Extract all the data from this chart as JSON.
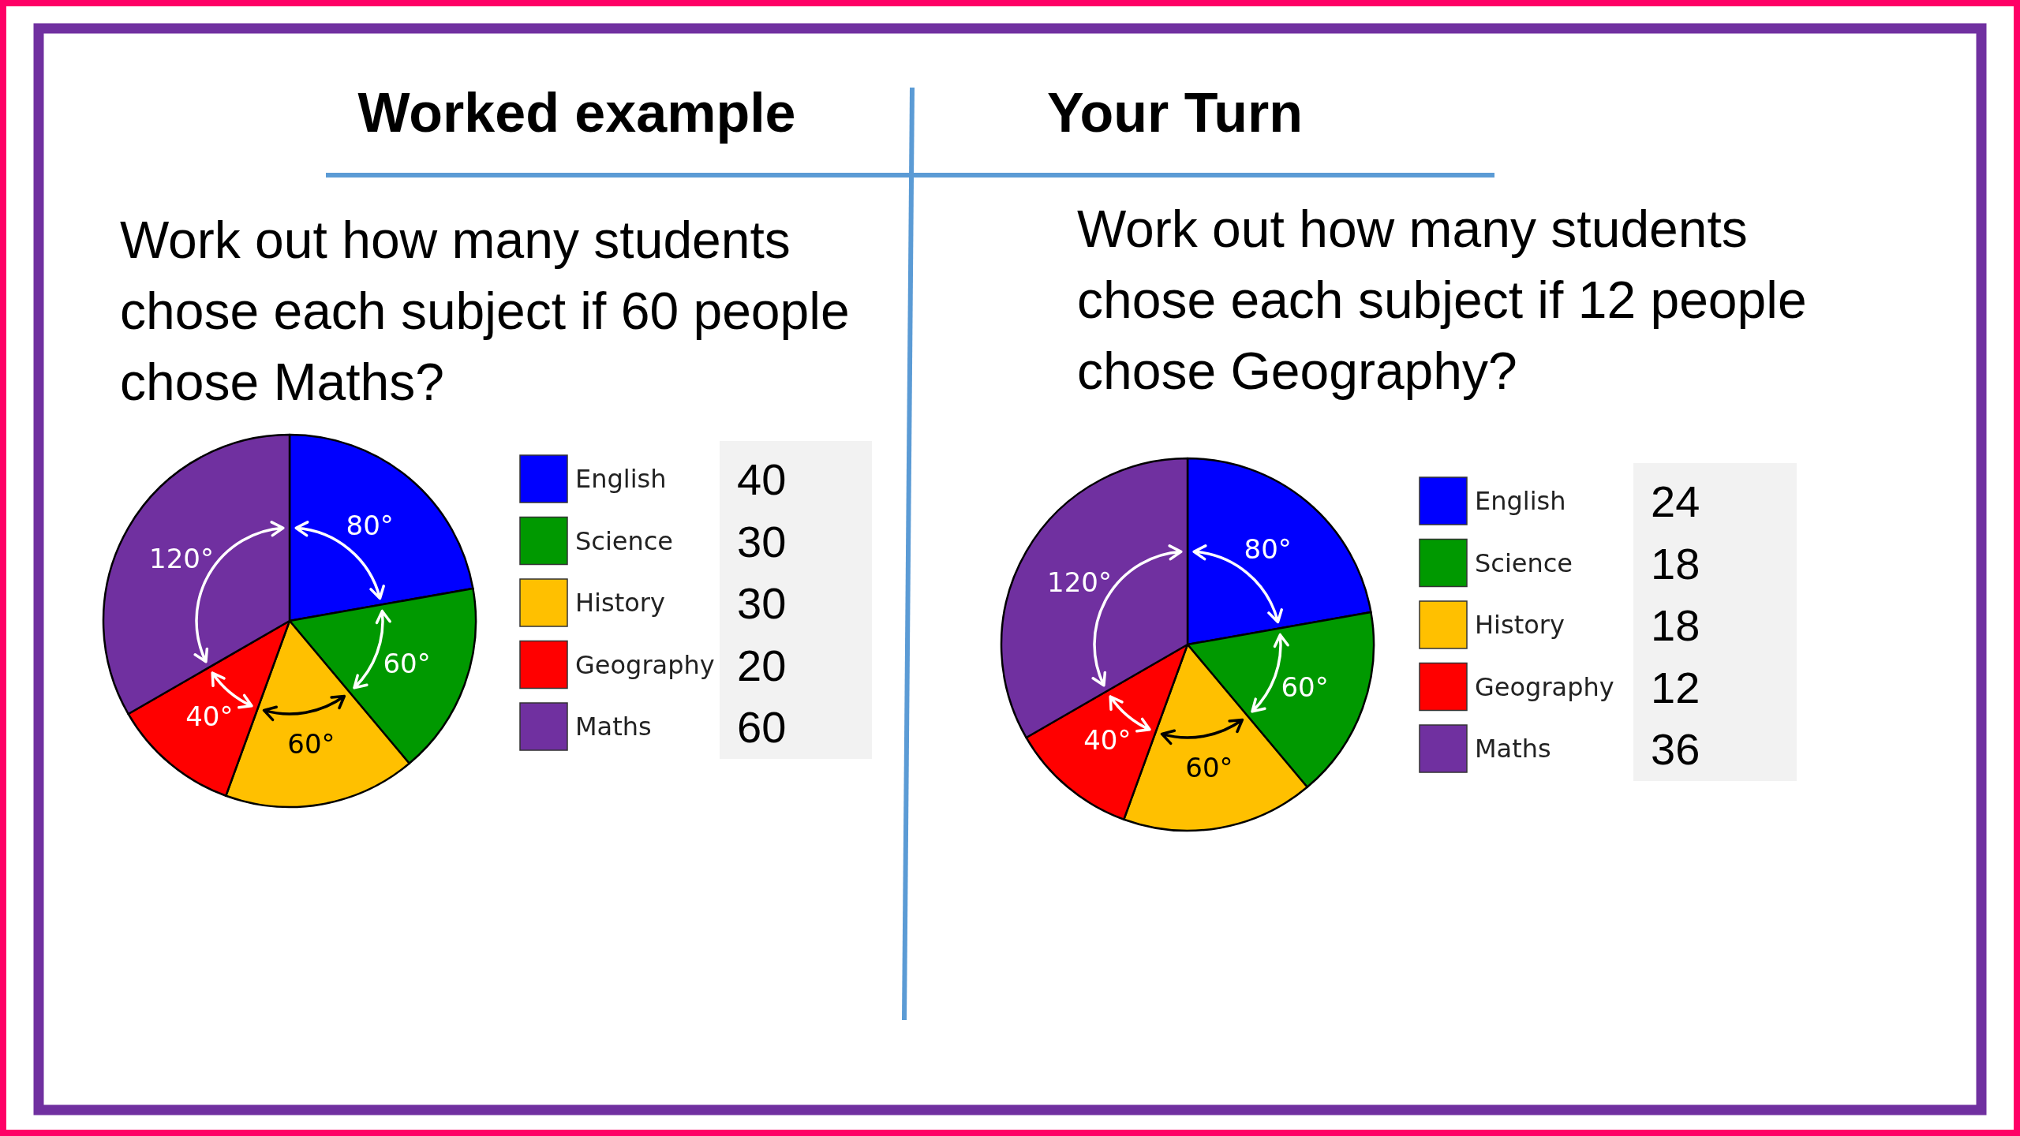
{
  "chart_data": [
    {
      "type": "pie",
      "title": "Worked example",
      "subtitle": "Work out how many students chose each subject if 60 people chose Maths?",
      "categories": [
        "English",
        "Science",
        "History",
        "Geography",
        "Maths"
      ],
      "values": [
        80,
        60,
        60,
        40,
        120
      ],
      "colors": [
        "#0000ff",
        "#009900",
        "#ffc000",
        "#ff0000",
        "#7030a0"
      ],
      "value_labels": [
        "80°",
        "60°",
        "60°",
        "40°",
        "120°"
      ],
      "annotations": [
        "40",
        "30",
        "30",
        "20",
        "60"
      ],
      "legend": "right"
    },
    {
      "type": "pie",
      "title": "Your Turn",
      "subtitle": "Work out how many students chose each subject if 12 people chose Geography?",
      "categories": [
        "English",
        "Science",
        "History",
        "Geography",
        "Maths"
      ],
      "values": [
        80,
        60,
        60,
        40,
        120
      ],
      "colors": [
        "#0000ff",
        "#009900",
        "#ffc000",
        "#ff0000",
        "#7030a0"
      ],
      "value_labels": [
        "80°",
        "60°",
        "60°",
        "40°",
        "120°"
      ],
      "annotations": [
        "24",
        "18",
        "18",
        "12",
        "36"
      ],
      "legend": "right"
    }
  ]
}
